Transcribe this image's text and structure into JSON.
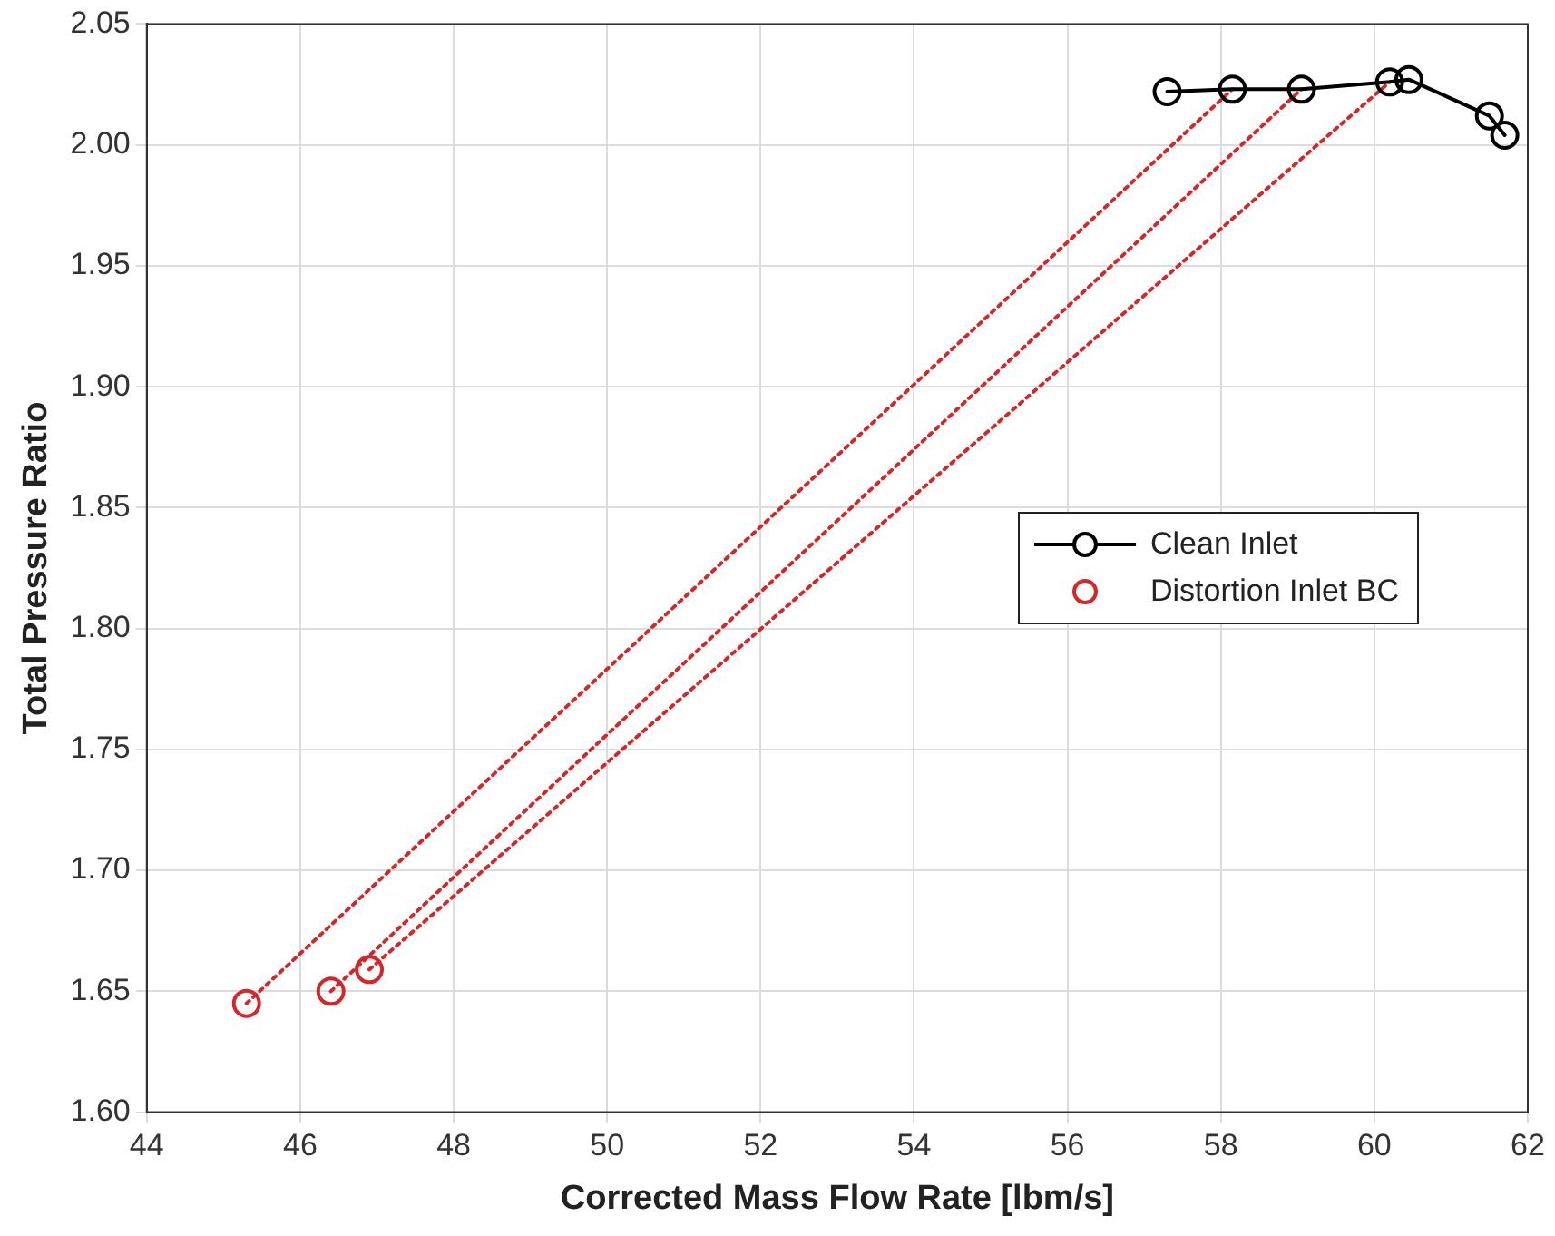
{
  "chart_data": {
    "type": "line",
    "xlabel": "Corrected Mass Flow Rate [lbm/s]",
    "ylabel": "Total Pressure Ratio",
    "xlim": [
      44,
      62
    ],
    "xticks": [
      44,
      46,
      48,
      50,
      52,
      54,
      56,
      58,
      60,
      62
    ],
    "ylim": [
      1.6,
      2.05
    ],
    "yticks": [
      {
        "value": 1.6,
        "label": "1.60"
      },
      {
        "value": 1.65,
        "label": "1.65"
      },
      {
        "value": 1.7,
        "label": "1.70"
      },
      {
        "value": 1.75,
        "label": "1.75"
      },
      {
        "value": 1.8,
        "label": "1.80"
      },
      {
        "value": 1.85,
        "label": "1.85"
      },
      {
        "value": 1.9,
        "label": "1.90"
      },
      {
        "value": 1.95,
        "label": "1.95"
      },
      {
        "value": 2.0,
        "label": "2.00"
      },
      {
        "value": 2.05,
        "label": "2.05"
      }
    ],
    "grid": true,
    "legend": "right",
    "series": [
      {
        "name": "Clean Inlet",
        "color": "#000000",
        "marker": "circle",
        "line_style": "solid",
        "x": [
          57.3,
          58.15,
          59.05,
          60.2,
          60.45,
          61.5,
          61.7
        ],
        "values": [
          2.022,
          2.023,
          2.023,
          2.026,
          2.027,
          2.012,
          2.004
        ]
      },
      {
        "name": "Distortion Inlet BC",
        "type": "scatter",
        "color": "#d62728",
        "marker": "circle",
        "x": [
          45.3,
          46.4,
          46.9
        ],
        "values": [
          1.645,
          1.65,
          1.659
        ]
      },
      {
        "type": "line",
        "color": "#d62728",
        "marker": "none",
        "line_style": "dotted",
        "x": [
          45.3,
          58.15
        ],
        "values": [
          1.645,
          2.023
        ]
      },
      {
        "type": "line",
        "color": "#d62728",
        "marker": "none",
        "line_style": "dotted",
        "x": [
          46.4,
          59.05
        ],
        "values": [
          1.65,
          2.023
        ]
      },
      {
        "type": "line",
        "color": "#d62728",
        "marker": "none",
        "line_style": "dotted",
        "x": [
          46.9,
          60.2
        ],
        "values": [
          1.659,
          2.026
        ]
      }
    ]
  }
}
